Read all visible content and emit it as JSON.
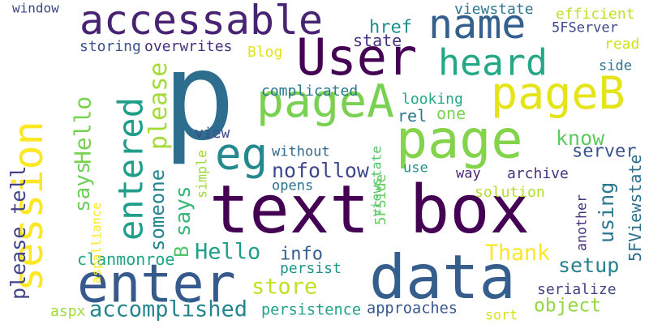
{
  "words": [
    {
      "text": "p",
      "color": "#2d6e8e"
    },
    {
      "text": "text box",
      "color": "#440154"
    },
    {
      "text": "page",
      "color": "#84d44b"
    },
    {
      "text": "session",
      "color": "#fde725"
    },
    {
      "text": "data",
      "color": "#355e8d"
    },
    {
      "text": "enter",
      "color": "#375a8c"
    },
    {
      "text": "accessable",
      "color": "#482374"
    },
    {
      "text": "User",
      "color": "#440154"
    },
    {
      "text": "name",
      "color": "#34608d"
    },
    {
      "text": "heard",
      "color": "#22a884"
    },
    {
      "text": "pageA",
      "color": "#7ad151"
    },
    {
      "text": "pageB",
      "color": "#e5e419"
    },
    {
      "text": "entered",
      "color": "#1f9e89"
    },
    {
      "text": "eg",
      "color": "#23898e"
    },
    {
      "text": "please",
      "color": "#a5db36"
    },
    {
      "text": "Hello",
      "color": "#7ad151"
    },
    {
      "text": "says",
      "color": "#6ece58"
    },
    {
      "text": "someone",
      "color": "#25858e"
    },
    {
      "text": "says",
      "color": "#35b779"
    },
    {
      "text": "B",
      "color": "#52c569"
    },
    {
      "text": "Hello",
      "color": "#1f9e89"
    },
    {
      "text": "info",
      "color": "#355e8d"
    },
    {
      "text": "store",
      "color": "#c2df23"
    },
    {
      "text": "accomplished",
      "color": "#25858e"
    },
    {
      "text": "please tell",
      "color": "#414487"
    },
    {
      "text": "clanmonroe",
      "color": "#20a486"
    },
    {
      "text": "aspx",
      "color": "#9fda3a"
    },
    {
      "text": "persistence",
      "color": "#20a386"
    },
    {
      "text": "approaches",
      "color": "#38588c"
    },
    {
      "text": "sort",
      "color": "#d8e219"
    },
    {
      "text": "object",
      "color": "#93d741"
    },
    {
      "text": "setup",
      "color": "#26818e"
    },
    {
      "text": "serialize",
      "color": "#414487"
    },
    {
      "text": "Thank",
      "color": "#fde725"
    },
    {
      "text": "another",
      "color": "#46327e"
    },
    {
      "text": "5FViewstate",
      "color": "#2d708e"
    },
    {
      "text": "using",
      "color": "#2a788e"
    },
    {
      "text": "server",
      "color": "#3b528b"
    },
    {
      "text": "know",
      "color": "#5ec962"
    },
    {
      "text": "solution",
      "color": "#b5de2b"
    },
    {
      "text": "archive",
      "color": "#46337e"
    },
    {
      "text": "viewstate",
      "color": "#54c568"
    },
    {
      "text": "way",
      "color": "#482878"
    },
    {
      "text": "use",
      "color": "#1f968b"
    },
    {
      "text": "5FSide",
      "color": "#65cb5e"
    },
    {
      "text": "nofollow",
      "color": "#3e4989"
    },
    {
      "text": "without",
      "color": "#31688e"
    },
    {
      "text": "opens",
      "color": "#2c728e"
    },
    {
      "text": "persist",
      "color": "#1f948c"
    },
    {
      "text": "view",
      "color": "#3e4c8a"
    },
    {
      "text": "simple",
      "color": "#a0da39"
    },
    {
      "text": "aspalliance",
      "color": "#fde725"
    },
    {
      "text": "complicated",
      "color": "#2a788e"
    },
    {
      "text": "Blog",
      "color": "#e2e418"
    },
    {
      "text": "storing",
      "color": "#3b528b"
    },
    {
      "text": "overwrites",
      "color": "#46307e"
    },
    {
      "text": "window",
      "color": "#404688"
    },
    {
      "text": "state",
      "color": "#46327e"
    },
    {
      "text": "href",
      "color": "#218e8d"
    },
    {
      "text": "rel",
      "color": "#2a788e"
    },
    {
      "text": "one",
      "color": "#7ad151"
    },
    {
      "text": "looking",
      "color": "#22a884"
    },
    {
      "text": "viewstate",
      "color": "#2a788e"
    },
    {
      "text": "efficient",
      "color": "#c0df25"
    },
    {
      "text": "5FServer",
      "color": "#3e4989"
    },
    {
      "text": "read",
      "color": "#d0e11c"
    },
    {
      "text": "side",
      "color": "#2c738e"
    }
  ]
}
